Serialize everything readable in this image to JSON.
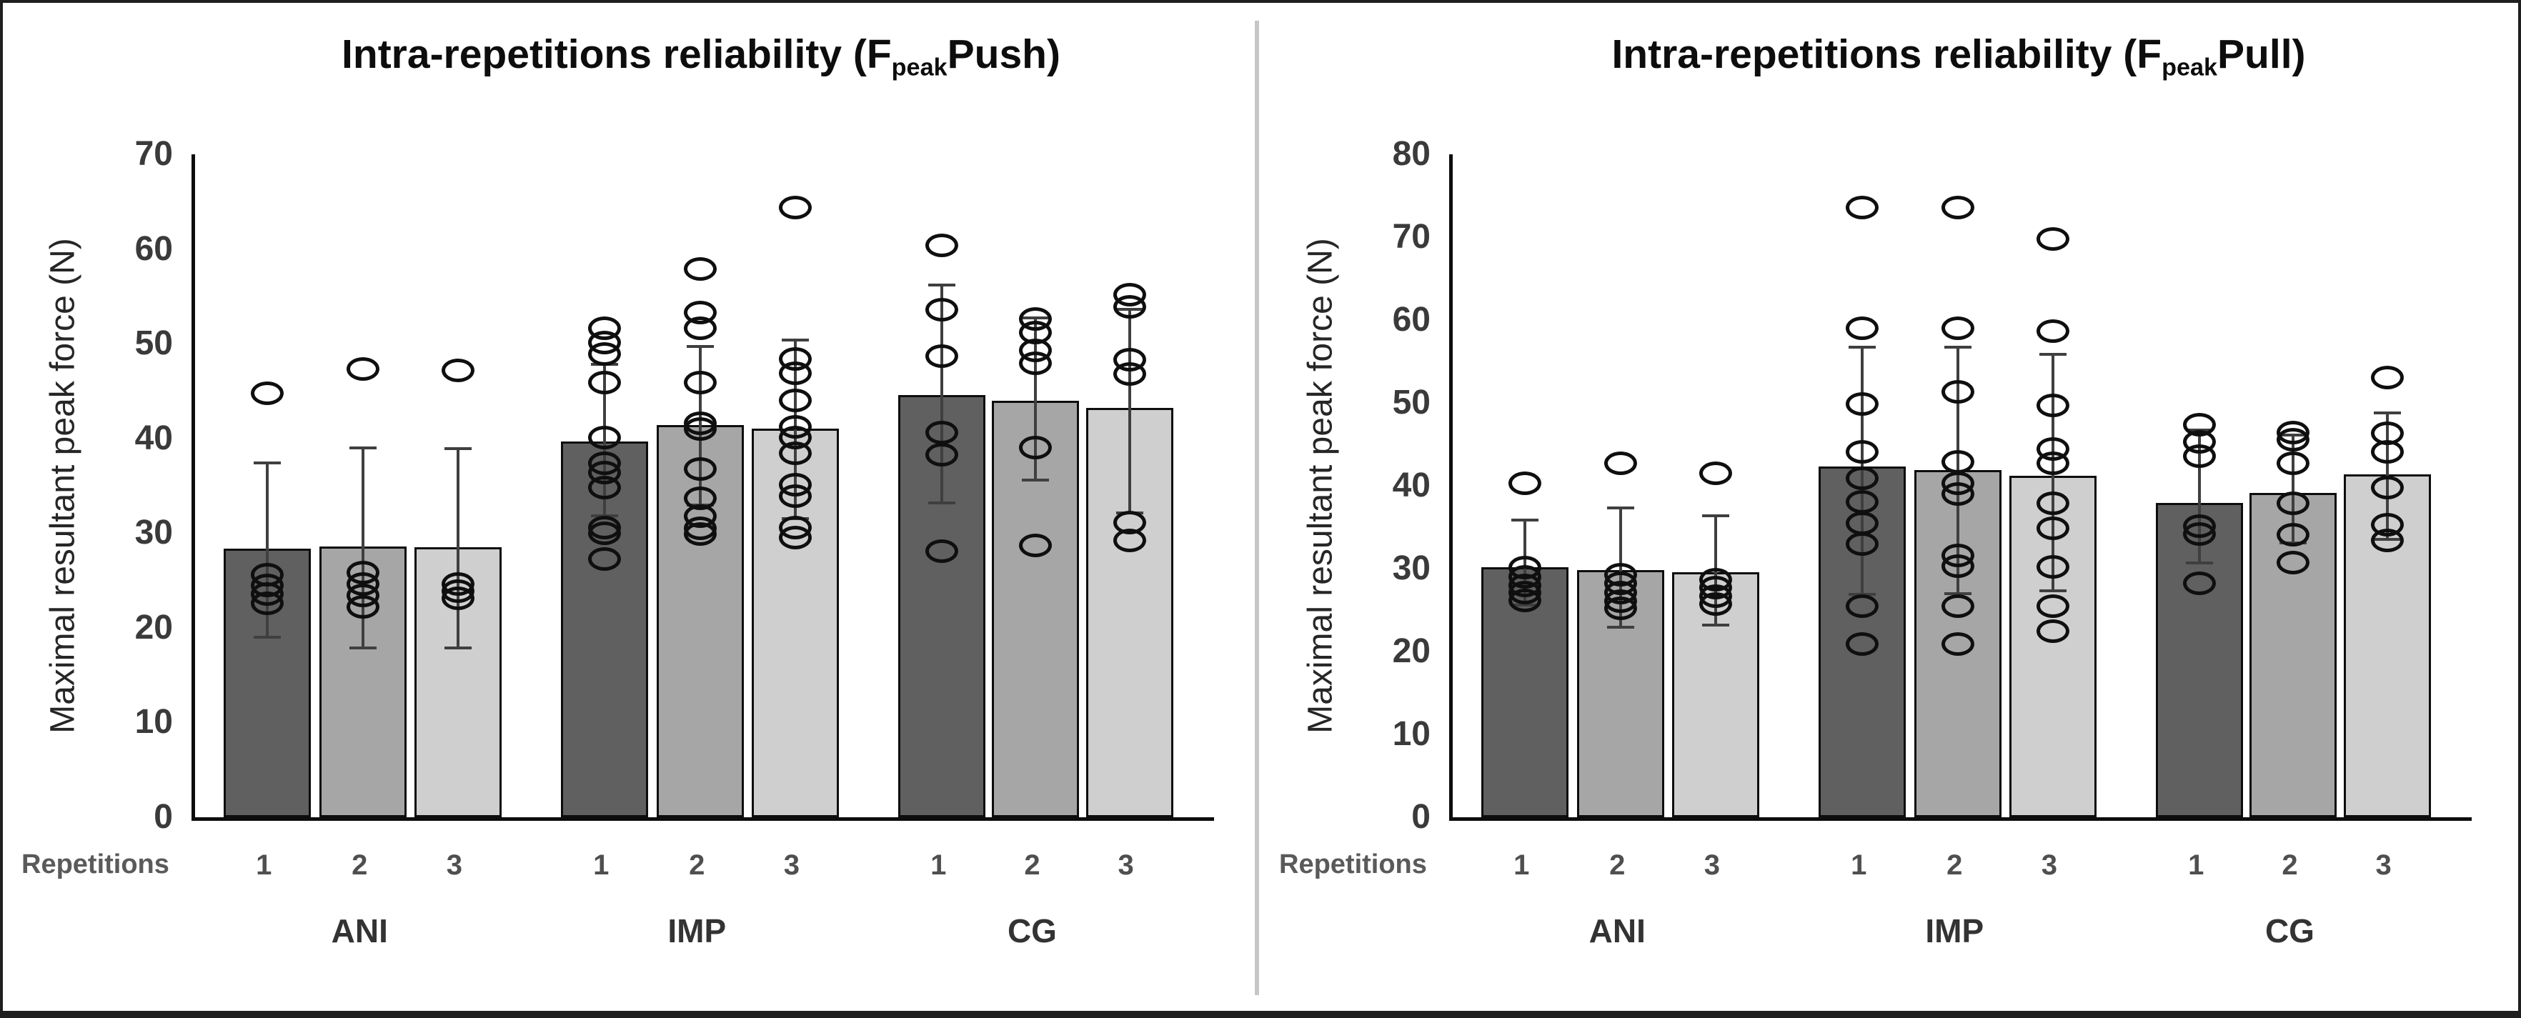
{
  "figure": {
    "description_left": "Push reliability bar chart",
    "description_right": "Pull reliability bar chart"
  },
  "chart_data": [
    {
      "type": "bar",
      "title": {
        "prefix": "Intra-repetitions reliability (F",
        "subscript": "peak",
        "suffix": "Push)"
      },
      "ylabel": "Maximal resultant peak force (N)",
      "xlabel": "Repetitions",
      "ylim": [
        0,
        70
      ],
      "yticks": [
        0,
        10,
        20,
        30,
        40,
        50,
        60,
        70
      ],
      "groups": [
        "ANI",
        "IMP",
        "CG"
      ],
      "repetitions": [
        "1",
        "2",
        "3"
      ],
      "bar_colors": [
        "#606060",
        "#a6a6a6",
        "#cfcfcf"
      ],
      "error_color": "#3f3f3f",
      "point_outline_color": "#0f0f0f",
      "grid": false,
      "legend": false,
      "bars": [
        {
          "group": "ANI",
          "rep": "1",
          "mean": 28.4,
          "err_low": 19.0,
          "err_high": 37.4,
          "points": [
            44.8,
            25.6,
            24.5,
            23.6,
            22.6
          ]
        },
        {
          "group": "ANI",
          "rep": "2",
          "mean": 28.6,
          "err_low": 17.9,
          "err_high": 39.0,
          "points": [
            47.3,
            25.8,
            24.6,
            23.4,
            22.2
          ]
        },
        {
          "group": "ANI",
          "rep": "3",
          "mean": 28.5,
          "err_low": 17.9,
          "err_high": 38.9,
          "points": [
            47.2,
            24.6,
            23.9,
            23.1
          ]
        },
        {
          "group": "IMP",
          "rep": "1",
          "mean": 39.7,
          "err_low": 31.8,
          "err_high": 47.8,
          "points": [
            51.6,
            50.1,
            48.9,
            45.9,
            40.1,
            37.4,
            36.4,
            34.8,
            30.6,
            30.0,
            27.3
          ]
        },
        {
          "group": "IMP",
          "rep": "2",
          "mean": 41.4,
          "err_low": 33.0,
          "err_high": 49.7,
          "points": [
            57.9,
            53.3,
            51.6,
            45.9,
            41.6,
            41.0,
            36.8,
            33.7,
            31.8,
            30.5,
            29.9
          ]
        },
        {
          "group": "IMP",
          "rep": "3",
          "mean": 41.0,
          "err_low": 31.5,
          "err_high": 50.4,
          "points": [
            64.4,
            48.4,
            46.9,
            44.0,
            41.2,
            40.1,
            38.4,
            35.1,
            33.9,
            30.6,
            29.5
          ]
        },
        {
          "group": "CG",
          "rep": "1",
          "mean": 44.6,
          "err_low": 33.2,
          "err_high": 56.2,
          "points": [
            60.4,
            53.6,
            48.7,
            40.6,
            38.3,
            28.1
          ]
        },
        {
          "group": "CG",
          "rep": "2",
          "mean": 44.0,
          "err_low": 35.6,
          "err_high": 52.7,
          "points": [
            52.6,
            51.2,
            49.3,
            47.9,
            39.0,
            28.7
          ]
        },
        {
          "group": "CG",
          "rep": "3",
          "mean": 43.2,
          "err_low": 32.1,
          "err_high": 53.6,
          "points": [
            55.2,
            53.9,
            48.3,
            46.8,
            31.1,
            29.2
          ]
        }
      ]
    },
    {
      "type": "bar",
      "title": {
        "prefix": "Intra-repetitions reliability (F",
        "subscript": "peak",
        "suffix": "Pull)"
      },
      "ylabel": "Maximal resultant peak force (N)",
      "xlabel": "Repetitions",
      "ylim": [
        0,
        80
      ],
      "yticks": [
        0,
        10,
        20,
        30,
        40,
        50,
        60,
        70,
        80
      ],
      "groups": [
        "ANI",
        "IMP",
        "CG"
      ],
      "repetitions": [
        "1",
        "2",
        "3"
      ],
      "bar_colors": [
        "#606060",
        "#a6a6a6",
        "#cfcfcf"
      ],
      "error_color": "#3f3f3f",
      "point_outline_color": "#0f0f0f",
      "grid": false,
      "legend": false,
      "bars": [
        {
          "group": "ANI",
          "rep": "1",
          "mean": 30.2,
          "err_low": 25.6,
          "err_high": 35.9,
          "points": [
            40.3,
            30.1,
            29.0,
            28.0,
            27.1,
            26.2
          ]
        },
        {
          "group": "ANI",
          "rep": "2",
          "mean": 29.8,
          "err_low": 22.9,
          "err_high": 37.3,
          "points": [
            42.7,
            29.3,
            28.2,
            27.1,
            26.1,
            25.2
          ]
        },
        {
          "group": "ANI",
          "rep": "3",
          "mean": 29.6,
          "err_low": 23.2,
          "err_high": 36.4,
          "points": [
            41.5,
            28.7,
            27.7,
            26.7,
            25.7
          ]
        },
        {
          "group": "IMP",
          "rep": "1",
          "mean": 42.3,
          "err_low": 26.9,
          "err_high": 56.7,
          "points": [
            73.6,
            59.0,
            49.9,
            44.1,
            40.9,
            38.1,
            35.5,
            33.0,
            25.5,
            20.9
          ]
        },
        {
          "group": "IMP",
          "rep": "2",
          "mean": 41.9,
          "err_low": 27.0,
          "err_high": 56.7,
          "points": [
            73.6,
            59.0,
            51.3,
            42.9,
            40.3,
            39.0,
            31.6,
            30.3,
            25.5,
            20.9
          ]
        },
        {
          "group": "IMP",
          "rep": "3",
          "mean": 41.2,
          "err_low": 27.3,
          "err_high": 55.9,
          "points": [
            69.8,
            58.7,
            49.7,
            44.4,
            42.7,
            37.9,
            34.9,
            30.2,
            25.5,
            22.5
          ]
        },
        {
          "group": "CG",
          "rep": "1",
          "mean": 37.9,
          "err_low": 30.7,
          "err_high": 46.7,
          "points": [
            47.4,
            45.3,
            43.6,
            35.1,
            34.2,
            28.2
          ]
        },
        {
          "group": "CG",
          "rep": "2",
          "mean": 39.1,
          "err_low": 33.1,
          "err_high": 46.1,
          "points": [
            46.4,
            45.6,
            42.7,
            37.9,
            34.1,
            30.7
          ]
        },
        {
          "group": "CG",
          "rep": "3",
          "mean": 41.4,
          "err_low": 33.5,
          "err_high": 48.8,
          "points": [
            53.1,
            46.3,
            44.1,
            39.8,
            35.3,
            33.4
          ]
        }
      ]
    }
  ]
}
